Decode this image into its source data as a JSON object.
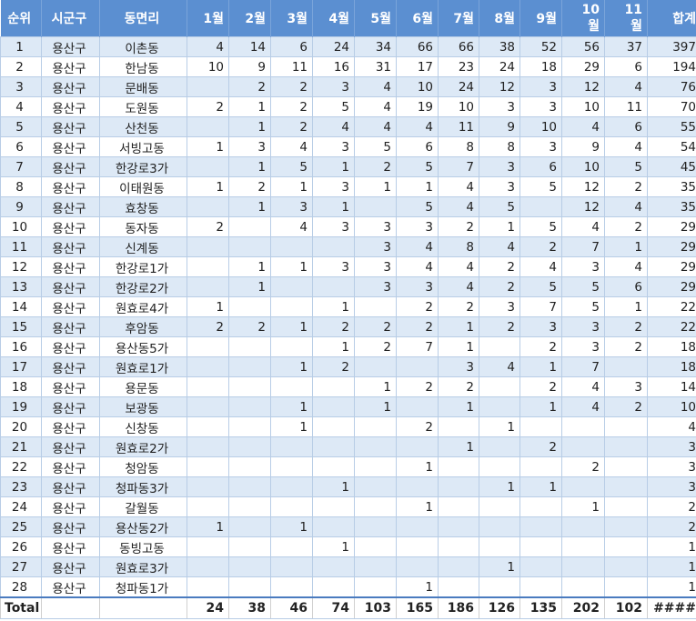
{
  "headers": {
    "rank": "순위",
    "city": "시군구",
    "town": "동면리",
    "months": [
      "1월",
      "2월",
      "3월",
      "4월",
      "5월",
      "6월",
      "7월",
      "8월",
      "9월",
      "10\n월",
      "11\n월"
    ],
    "total": "합계"
  },
  "rows": [
    {
      "rank": "1",
      "city": "용산구",
      "town": "이촌동",
      "m": [
        "4",
        "14",
        "6",
        "24",
        "34",
        "66",
        "66",
        "38",
        "52",
        "56",
        "37"
      ],
      "total": "397"
    },
    {
      "rank": "2",
      "city": "용산구",
      "town": "한남동",
      "m": [
        "10",
        "9",
        "11",
        "16",
        "31",
        "17",
        "23",
        "24",
        "18",
        "29",
        "6"
      ],
      "total": "194"
    },
    {
      "rank": "3",
      "city": "용산구",
      "town": "문배동",
      "m": [
        "",
        "2",
        "2",
        "3",
        "4",
        "10",
        "24",
        "12",
        "3",
        "12",
        "4"
      ],
      "total": "76"
    },
    {
      "rank": "4",
      "city": "용산구",
      "town": "도원동",
      "m": [
        "2",
        "1",
        "2",
        "5",
        "4",
        "19",
        "10",
        "3",
        "3",
        "10",
        "11"
      ],
      "total": "70"
    },
    {
      "rank": "5",
      "city": "용산구",
      "town": "산천동",
      "m": [
        "",
        "1",
        "2",
        "4",
        "4",
        "4",
        "11",
        "9",
        "10",
        "4",
        "6"
      ],
      "total": "55"
    },
    {
      "rank": "6",
      "city": "용산구",
      "town": "서빙고동",
      "m": [
        "1",
        "3",
        "4",
        "3",
        "5",
        "6",
        "8",
        "8",
        "3",
        "9",
        "4"
      ],
      "total": "54"
    },
    {
      "rank": "7",
      "city": "용산구",
      "town": "한강로3가",
      "m": [
        "",
        "1",
        "5",
        "1",
        "2",
        "5",
        "7",
        "3",
        "6",
        "10",
        "5"
      ],
      "total": "45"
    },
    {
      "rank": "8",
      "city": "용산구",
      "town": "이태원동",
      "m": [
        "1",
        "2",
        "1",
        "3",
        "1",
        "1",
        "4",
        "3",
        "5",
        "12",
        "2"
      ],
      "total": "35"
    },
    {
      "rank": "9",
      "city": "용산구",
      "town": "효창동",
      "m": [
        "",
        "1",
        "3",
        "1",
        "",
        "5",
        "4",
        "5",
        "",
        "12",
        "4"
      ],
      "total": "35"
    },
    {
      "rank": "10",
      "city": "용산구",
      "town": "동자동",
      "m": [
        "2",
        "",
        "4",
        "3",
        "3",
        "3",
        "2",
        "1",
        "5",
        "4",
        "2"
      ],
      "total": "29"
    },
    {
      "rank": "11",
      "city": "용산구",
      "town": "신계동",
      "m": [
        "",
        "",
        "",
        "",
        "3",
        "4",
        "8",
        "4",
        "2",
        "7",
        "1"
      ],
      "total": "29"
    },
    {
      "rank": "12",
      "city": "용산구",
      "town": "한강로1가",
      "m": [
        "",
        "1",
        "1",
        "3",
        "3",
        "4",
        "4",
        "2",
        "4",
        "3",
        "4"
      ],
      "total": "29"
    },
    {
      "rank": "13",
      "city": "용산구",
      "town": "한강로2가",
      "m": [
        "",
        "1",
        "",
        "",
        "3",
        "3",
        "4",
        "2",
        "5",
        "5",
        "6"
      ],
      "total": "29"
    },
    {
      "rank": "14",
      "city": "용산구",
      "town": "원효로4가",
      "m": [
        "1",
        "",
        "",
        "1",
        "",
        "2",
        "2",
        "3",
        "7",
        "5",
        "1"
      ],
      "total": "22"
    },
    {
      "rank": "15",
      "city": "용산구",
      "town": "후암동",
      "m": [
        "2",
        "2",
        "1",
        "2",
        "2",
        "2",
        "1",
        "2",
        "3",
        "3",
        "2"
      ],
      "total": "22"
    },
    {
      "rank": "16",
      "city": "용산구",
      "town": "용산동5가",
      "m": [
        "",
        "",
        "",
        "1",
        "2",
        "7",
        "1",
        "",
        "2",
        "3",
        "2"
      ],
      "total": "18"
    },
    {
      "rank": "17",
      "city": "용산구",
      "town": "원효로1가",
      "m": [
        "",
        "",
        "1",
        "2",
        "",
        "",
        "3",
        "4",
        "1",
        "7",
        ""
      ],
      "total": "18"
    },
    {
      "rank": "18",
      "city": "용산구",
      "town": "용문동",
      "m": [
        "",
        "",
        "",
        "",
        "1",
        "2",
        "2",
        "",
        "2",
        "4",
        "3"
      ],
      "total": "14"
    },
    {
      "rank": "19",
      "city": "용산구",
      "town": "보광동",
      "m": [
        "",
        "",
        "1",
        "",
        "1",
        "",
        "1",
        "",
        "1",
        "4",
        "2"
      ],
      "total": "10"
    },
    {
      "rank": "20",
      "city": "용산구",
      "town": "신창동",
      "m": [
        "",
        "",
        "1",
        "",
        "",
        "2",
        "",
        "1",
        "",
        "",
        ""
      ],
      "total": "4"
    },
    {
      "rank": "21",
      "city": "용산구",
      "town": "원효로2가",
      "m": [
        "",
        "",
        "",
        "",
        "",
        "",
        "1",
        "",
        "2",
        "",
        ""
      ],
      "total": "3"
    },
    {
      "rank": "22",
      "city": "용산구",
      "town": "청암동",
      "m": [
        "",
        "",
        "",
        "",
        "",
        "1",
        "",
        "",
        "",
        "2",
        ""
      ],
      "total": "3"
    },
    {
      "rank": "23",
      "city": "용산구",
      "town": "청파동3가",
      "m": [
        "",
        "",
        "",
        "1",
        "",
        "",
        "",
        "1",
        "1",
        "",
        ""
      ],
      "total": "3"
    },
    {
      "rank": "24",
      "city": "용산구",
      "town": "갈월동",
      "m": [
        "",
        "",
        "",
        "",
        "",
        "1",
        "",
        "",
        "",
        "1",
        ""
      ],
      "total": "2"
    },
    {
      "rank": "25",
      "city": "용산구",
      "town": "용산동2가",
      "m": [
        "1",
        "",
        "1",
        "",
        "",
        "",
        "",
        "",
        "",
        "",
        ""
      ],
      "total": "2"
    },
    {
      "rank": "26",
      "city": "용산구",
      "town": "동빙고동",
      "m": [
        "",
        "",
        "",
        "1",
        "",
        "",
        "",
        "",
        "",
        "",
        ""
      ],
      "total": "1"
    },
    {
      "rank": "27",
      "city": "용산구",
      "town": "원효로3가",
      "m": [
        "",
        "",
        "",
        "",
        "",
        "",
        "",
        "1",
        "",
        "",
        ""
      ],
      "total": "1"
    },
    {
      "rank": "28",
      "city": "용산구",
      "town": "청파동1가",
      "m": [
        "",
        "",
        "",
        "",
        "",
        "1",
        "",
        "",
        "",
        "",
        ""
      ],
      "total": "1"
    }
  ],
  "totals": {
    "label": "Total",
    "m": [
      "24",
      "38",
      "46",
      "74",
      "103",
      "165",
      "186",
      "126",
      "135",
      "202",
      "102"
    ],
    "total": "####"
  },
  "colors": {
    "header_bg": "#5b8fd1",
    "header_text": "#ffffff",
    "band_row": "#dde9f6",
    "plain_row": "#ffffff",
    "grid": "#b8cde6"
  }
}
